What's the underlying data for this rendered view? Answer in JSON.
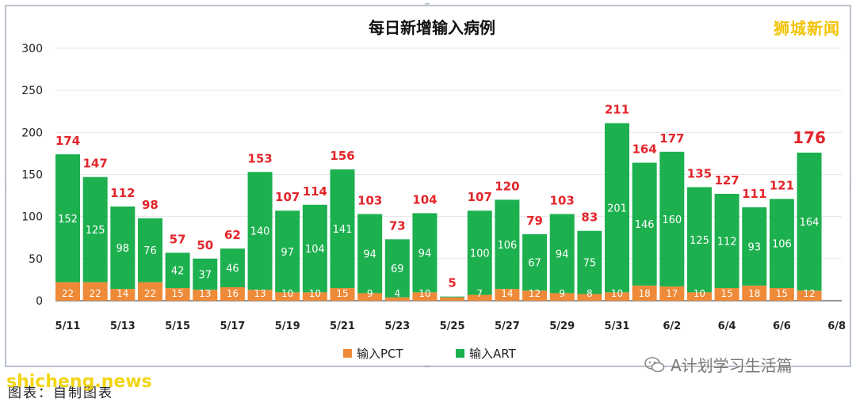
{
  "brand": {
    "watermark_top": "狮城新闻",
    "wechat": "A计划学习生活篇",
    "site": "shicheng.news",
    "source": "图表：自制图表"
  },
  "colors": {
    "pct": "#ee8a38",
    "art": "#1db04f",
    "total_label": "#e3252a",
    "inner_label": "#ffffff"
  },
  "chart_data": {
    "type": "bar",
    "stacked": true,
    "title": "每日新增输入病例",
    "ylim": [
      0,
      300
    ],
    "yticks": [
      0,
      50,
      100,
      150,
      200,
      250,
      300
    ],
    "categories": [
      "5/11",
      "5/12",
      "5/13",
      "5/14",
      "5/15",
      "5/16",
      "5/17",
      "5/18",
      "5/19",
      "5/20",
      "5/21",
      "5/22",
      "5/23",
      "5/24",
      "5/25",
      "5/26",
      "5/27",
      "5/28",
      "5/29",
      "5/30",
      "5/31",
      "6/1",
      "6/2",
      "6/3",
      "6/4",
      "6/5",
      "6/6",
      "6/7",
      "6/8"
    ],
    "xtick_labels": [
      "5/11",
      "5/13",
      "5/15",
      "5/17",
      "5/19",
      "5/21",
      "5/23",
      "5/25",
      "5/27",
      "5/29",
      "5/31",
      "6/2",
      "6/4",
      "6/6",
      "6/8"
    ],
    "series": [
      {
        "name": "输入PCT",
        "values": [
          22,
          22,
          14,
          22,
          15,
          13,
          16,
          13,
          10,
          10,
          15,
          9,
          4,
          10,
          4,
          7,
          14,
          12,
          9,
          8,
          10,
          18,
          17,
          10,
          15,
          18,
          15,
          12,
          null
        ]
      },
      {
        "name": "输入ART",
        "values": [
          152,
          125,
          98,
          76,
          42,
          37,
          46,
          140,
          97,
          104,
          141,
          94,
          69,
          94,
          1,
          100,
          106,
          67,
          94,
          75,
          201,
          146,
          160,
          125,
          112,
          93,
          106,
          164,
          null
        ]
      }
    ],
    "totals": [
      174,
      147,
      112,
      98,
      57,
      50,
      62,
      153,
      107,
      114,
      156,
      103,
      73,
      104,
      5,
      107,
      120,
      79,
      103,
      83,
      211,
      164,
      177,
      135,
      127,
      111,
      121,
      176,
      null
    ],
    "legend_position": "bottom"
  }
}
